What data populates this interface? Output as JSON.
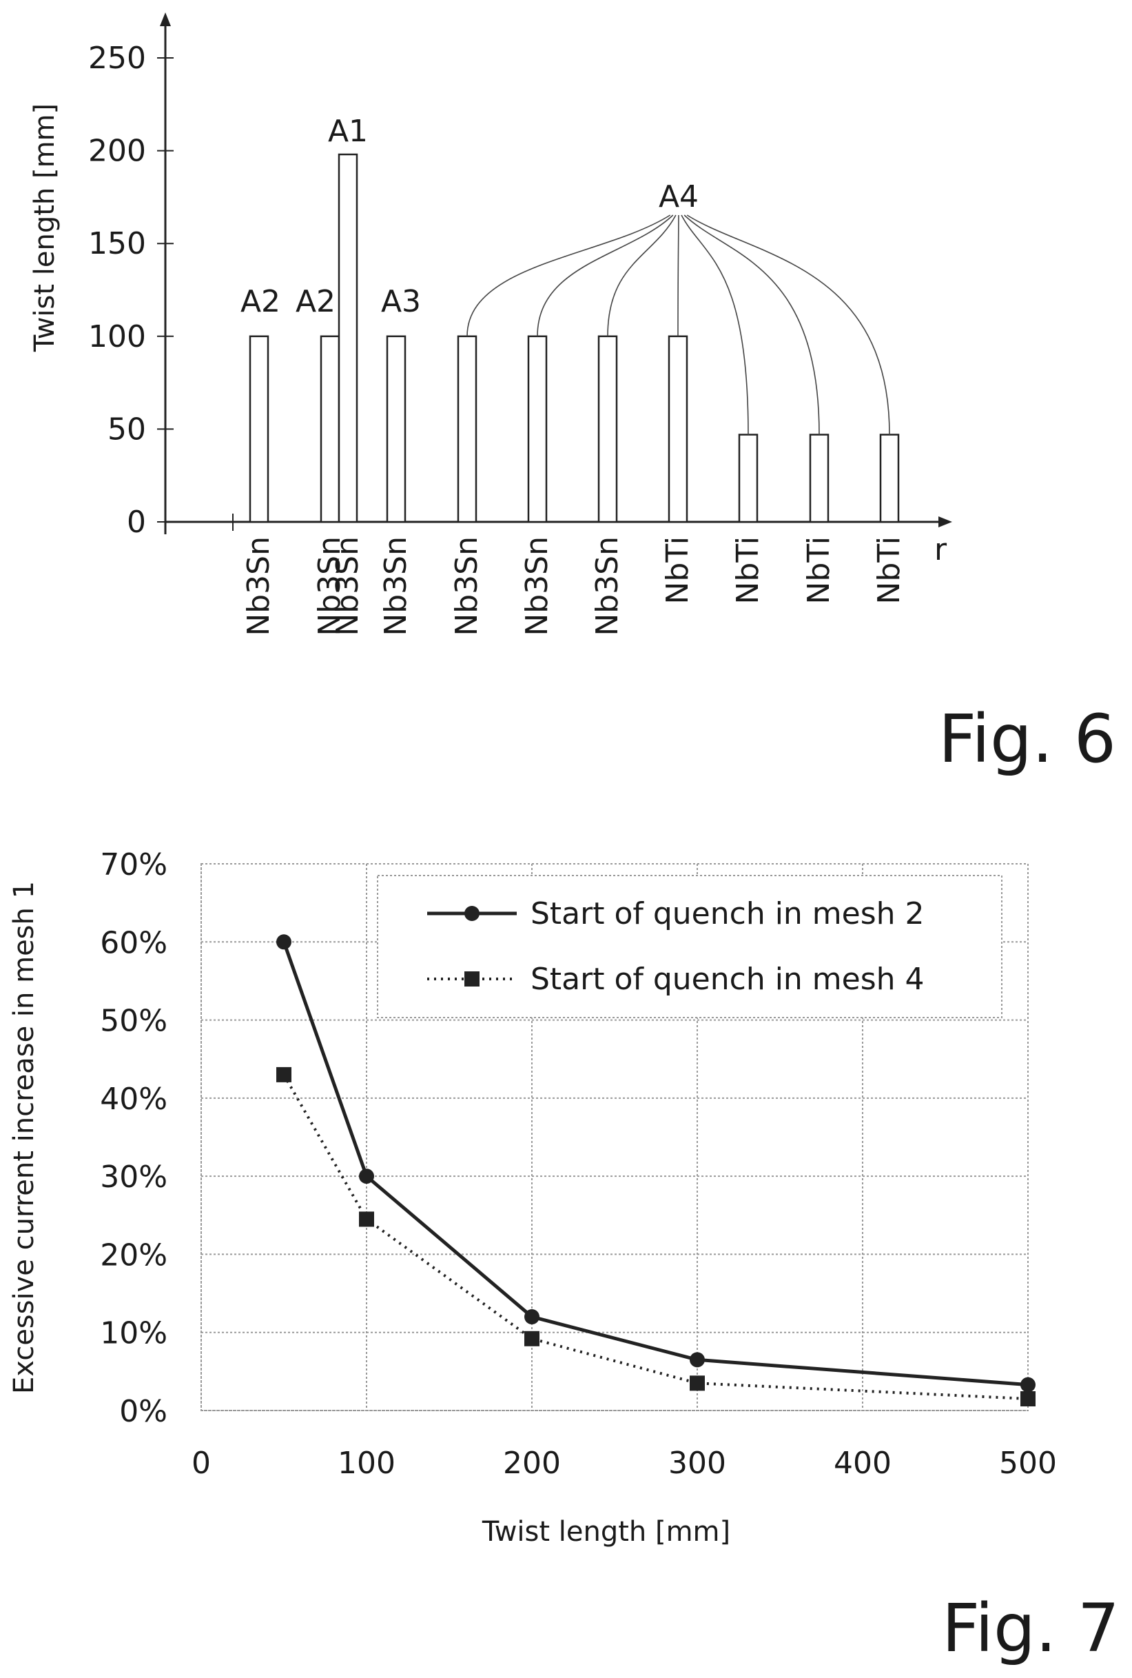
{
  "figures": {
    "fig6_label": "Fig. 6",
    "fig7_label": "Fig. 7"
  },
  "chart_data": [
    {
      "type": "bar",
      "ylabel": "Twist length [mm]",
      "xlabel": "r",
      "yticks": [
        "0",
        "50",
        "100",
        "150",
        "200",
        "250"
      ],
      "ylim": [
        0,
        250
      ],
      "categories": [
        "Nb3Sn",
        "Nb3Sn",
        "Nb3Sn",
        "Nb3Sn",
        "Nb3Sn",
        "Nb3Sn",
        "Nb3Sn",
        "NbTi",
        "NbTi",
        "NbTi",
        "NbTi"
      ],
      "values": [
        100,
        100,
        198,
        100,
        100,
        100,
        100,
        100,
        47,
        47,
        47
      ],
      "bar_groups": [
        "A2",
        "A2",
        "A1",
        "A3",
        "A4",
        "A4",
        "A4",
        "A4",
        "A4",
        "A4",
        "A4"
      ],
      "group_labels": [
        "A2",
        "A2",
        "A1",
        "A3",
        "A4"
      ],
      "grid": false
    },
    {
      "type": "line",
      "ylabel": "Excessive current increase in mesh 1",
      "xlabel": "Twist length [mm]",
      "xticks": [
        "0",
        "100",
        "200",
        "300",
        "400",
        "500"
      ],
      "yticks": [
        "0%",
        "10%",
        "20%",
        "30%",
        "40%",
        "50%",
        "60%",
        "70%"
      ],
      "xlim": [
        0,
        500
      ],
      "ylim": [
        0,
        70
      ],
      "grid": true,
      "legend_position": "top-right",
      "series": [
        {
          "name": "Start of quench in mesh 2",
          "marker": "circle",
          "style": "solid",
          "x": [
            50,
            100,
            200,
            300,
            500
          ],
          "y": [
            60,
            30,
            12,
            6.5,
            3.3
          ]
        },
        {
          "name": "Start of quench in mesh 4",
          "marker": "square",
          "style": "dotted",
          "x": [
            50,
            100,
            200,
            300,
            500
          ],
          "y": [
            43,
            24.5,
            9.2,
            3.5,
            1.5
          ]
        }
      ]
    }
  ]
}
